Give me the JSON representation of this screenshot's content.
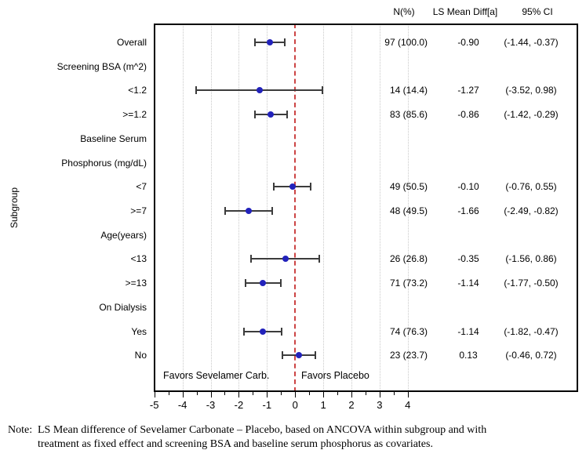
{
  "chart_data": {
    "type": "scatter",
    "subtype": "forest-plot",
    "title": "",
    "xlabel": "",
    "ylabel": "Subgroup",
    "x_axis": {
      "min": -5,
      "max": 4.5,
      "major_ticks": [
        -5,
        -4,
        -3,
        -2,
        -1,
        0,
        1,
        2,
        3,
        4
      ],
      "minor_ticks": [
        -4.5,
        -3.5,
        -2.5,
        -1.5,
        -0.5,
        0.5,
        1.5,
        2.5,
        3.5
      ]
    },
    "grid": "vertical-dotted",
    "legend_position": "none",
    "reference_line": {
      "x": 0,
      "style": "dashed",
      "color": "#cc4444"
    },
    "favors_left_label": "Favors Sevelamer Carb.",
    "favors_right_label": "Favors Placebo",
    "column_headers": {
      "n": "N(%)",
      "diff": "LS Mean Diff[a]",
      "ci": "95% CI"
    },
    "rows": [
      {
        "kind": "data",
        "label": "Overall",
        "n_pct": "97 (100.0)",
        "ls_mean_diff": "-0.90",
        "ci_text": "(-1.44, -0.37)",
        "estimate": -0.9,
        "ci_low": -1.44,
        "ci_high": -0.37
      },
      {
        "kind": "heading",
        "label": "Screening BSA (m^2)"
      },
      {
        "kind": "data",
        "label": "<1.2",
        "n_pct": "14 (14.4)",
        "ls_mean_diff": "-1.27",
        "ci_text": "(-3.52, 0.98)",
        "estimate": -1.27,
        "ci_low": -3.52,
        "ci_high": 0.98
      },
      {
        "kind": "data",
        "label": ">=1.2",
        "n_pct": "83 (85.6)",
        "ls_mean_diff": "-0.86",
        "ci_text": "(-1.42, -0.29)",
        "estimate": -0.86,
        "ci_low": -1.42,
        "ci_high": -0.29
      },
      {
        "kind": "heading",
        "label": "Baseline Serum"
      },
      {
        "kind": "heading",
        "label": "Phosphorus (mg/dL)"
      },
      {
        "kind": "data",
        "label": "<7",
        "n_pct": "49 (50.5)",
        "ls_mean_diff": "-0.10",
        "ci_text": "(-0.76, 0.55)",
        "estimate": -0.1,
        "ci_low": -0.76,
        "ci_high": 0.55
      },
      {
        "kind": "data",
        "label": ">=7",
        "n_pct": "48 (49.5)",
        "ls_mean_diff": "-1.66",
        "ci_text": "(-2.49, -0.82)",
        "estimate": -1.66,
        "ci_low": -2.49,
        "ci_high": -0.82
      },
      {
        "kind": "heading",
        "label": "Age(years)"
      },
      {
        "kind": "data",
        "label": "<13",
        "n_pct": "26 (26.8)",
        "ls_mean_diff": "-0.35",
        "ci_text": "(-1.56, 0.86)",
        "estimate": -0.35,
        "ci_low": -1.56,
        "ci_high": 0.86
      },
      {
        "kind": "data",
        "label": ">=13",
        "n_pct": "71 (73.2)",
        "ls_mean_diff": "-1.14",
        "ci_text": "(-1.77, -0.50)",
        "estimate": -1.14,
        "ci_low": -1.77,
        "ci_high": -0.5
      },
      {
        "kind": "heading",
        "label": "On Dialysis"
      },
      {
        "kind": "data",
        "label": "Yes",
        "n_pct": "74 (76.3)",
        "ls_mean_diff": "-1.14",
        "ci_text": "(-1.82, -0.47)",
        "estimate": -1.14,
        "ci_low": -1.82,
        "ci_high": -0.47
      },
      {
        "kind": "data",
        "label": "No",
        "n_pct": "23 (23.7)",
        "ls_mean_diff": "0.13",
        "ci_text": "(-0.46, 0.72)",
        "estimate": 0.13,
        "ci_low": -0.46,
        "ci_high": 0.72
      }
    ],
    "colors": {
      "point": "#2222bb",
      "error_bar": "#3c3c3c",
      "reference_line": "#cc4444",
      "gridline": "#c9c9c9",
      "frame": "#000000"
    }
  },
  "note": {
    "prefix": "Note:",
    "lines": [
      "LS Mean difference of Sevelamer Carbonate – Placebo, based on ANCOVA within subgroup and with",
      "treatment as fixed effect and screening BSA and baseline serum phosphorus as covariates."
    ]
  }
}
